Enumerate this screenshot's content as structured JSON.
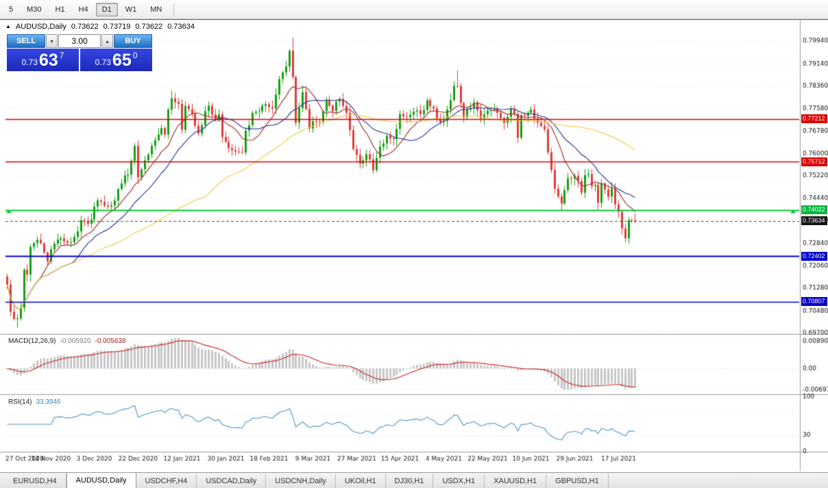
{
  "toolbar": {
    "timeframes": [
      {
        "label": "5",
        "active": false
      },
      {
        "label": "M30",
        "active": false
      },
      {
        "label": "H1",
        "active": false
      },
      {
        "label": "H4",
        "active": false
      },
      {
        "label": "D1",
        "active": true
      },
      {
        "label": "W1",
        "active": false
      },
      {
        "label": "MN",
        "active": false
      }
    ]
  },
  "chart": {
    "header": {
      "icon_glyph": "▲",
      "symbol": "AUDUSD,Daily",
      "open": "0.73622",
      "high": "0.73719",
      "low": "0.73622",
      "close": "0.73634"
    },
    "trade_panel": {
      "sell_label": "SELL",
      "buy_label": "BUY",
      "volume": "3.00",
      "dropdown_glyph": "▾",
      "increase_glyph": "▴",
      "sell_price": {
        "base": "0.73",
        "big": "63",
        "sup": "7"
      },
      "buy_price": {
        "base": "0.73",
        "big": "65",
        "sup": "0"
      }
    }
  },
  "indicators": {
    "macd": {
      "title": "MACD(12,26,9)",
      "value1": "-0.005920",
      "value2": "-0.005638"
    },
    "rsi": {
      "title": "RSI(14)",
      "value": "33.3946"
    }
  },
  "price_markers": [
    {
      "text": "0.77212",
      "price": 0.77212,
      "bg": "#dd0000"
    },
    {
      "text": "0.75712",
      "price": 0.75712,
      "bg": "#dd0000"
    },
    {
      "text": "0.74022",
      "price": 0.74022,
      "bg": "#00b83c"
    },
    {
      "text": "0.73634",
      "price": 0.73634,
      "bg": "#141414"
    },
    {
      "text": "0.72402",
      "price": 0.72402,
      "bg": "#0000cc"
    },
    {
      "text": "0.70807",
      "price": 0.70807,
      "bg": "#0000cc"
    }
  ],
  "tabs": {
    "items": [
      {
        "label": "EURUSD,H4",
        "active": false
      },
      {
        "label": "AUDUSD,Daily",
        "active": true
      },
      {
        "label": "USDCHF,H4",
        "active": false
      },
      {
        "label": "USDCAD,Daily",
        "active": false
      },
      {
        "label": "USDCNH,Daily",
        "active": false
      },
      {
        "label": "UKOil,H1",
        "active": false
      },
      {
        "label": "DJ30,H1",
        "active": false
      },
      {
        "label": "USDX,H1",
        "active": false
      },
      {
        "label": "XAUUSD,H1",
        "active": false
      },
      {
        "label": "GBPUSD,H1",
        "active": false
      }
    ]
  },
  "chart_data": {
    "type": "candlestick",
    "symbol": "AUDUSD",
    "timeframe": "Daily",
    "ohlc_display": {
      "open": 0.73622,
      "high": 0.73719,
      "low": 0.73622,
      "close": 0.73634
    },
    "last_price": 0.73634,
    "n_bars": 188,
    "bars_per_label": 13,
    "x_labels": [
      "27 Oct 2020",
      "14 Nov 2020",
      "3 Dec 2020",
      "22 Dec 2020",
      "12 Jan 2021",
      "30 Jan 2021",
      "18 Feb 2021",
      "9 Mar 2021",
      "27 Mar 2021",
      "15 Apr 2021",
      "4 May 2021",
      "22 May 2021",
      "10 Jun 2021",
      "29 Jun 2021",
      "17 Jul 2021"
    ],
    "y_ticks": [
      0.7994,
      0.7914,
      0.7836,
      0.7758,
      0.7678,
      0.76,
      0.7522,
      0.7444,
      0.7366,
      0.7284,
      0.7206,
      0.7128,
      0.7048,
      0.697
    ],
    "candle_up": "#12a112",
    "candle_down": "#e23b3b",
    "price_anchors": [
      [
        0,
        0.7135
      ],
      [
        1,
        0.704
      ],
      [
        2,
        0.702
      ],
      [
        3,
        0.703
      ],
      [
        4,
        0.7055
      ],
      [
        5,
        0.7185
      ],
      [
        6,
        0.717
      ],
      [
        7,
        0.7265
      ],
      [
        9,
        0.73
      ],
      [
        10,
        0.7285
      ],
      [
        12,
        0.723
      ],
      [
        13,
        0.7268
      ],
      [
        16,
        0.7305
      ],
      [
        18,
        0.7285
      ],
      [
        20,
        0.73
      ],
      [
        22,
        0.7365
      ],
      [
        24,
        0.7355
      ],
      [
        25,
        0.7375
      ],
      [
        27,
        0.744
      ],
      [
        29,
        0.742
      ],
      [
        31,
        0.7415
      ],
      [
        33,
        0.747
      ],
      [
        35,
        0.752
      ],
      [
        36,
        0.753
      ],
      [
        38,
        0.762
      ],
      [
        39,
        0.752
      ],
      [
        41,
        0.758
      ],
      [
        43,
        0.762
      ],
      [
        45,
        0.766
      ],
      [
        46,
        0.769
      ],
      [
        47,
        0.766
      ],
      [
        48,
        0.7755
      ],
      [
        49,
        0.78
      ],
      [
        51,
        0.777
      ],
      [
        52,
        0.769
      ],
      [
        53,
        0.777
      ],
      [
        55,
        0.774
      ],
      [
        56,
        0.77
      ],
      [
        57,
        0.7668
      ],
      [
        59,
        0.7743
      ],
      [
        60,
        0.7765
      ],
      [
        62,
        0.771
      ],
      [
        63,
        0.7744
      ],
      [
        64,
        0.7661
      ],
      [
        65,
        0.7637
      ],
      [
        67,
        0.7612
      ],
      [
        68,
        0.76
      ],
      [
        70,
        0.76
      ],
      [
        71,
        0.7676
      ],
      [
        73,
        0.7735
      ],
      [
        75,
        0.7751
      ],
      [
        77,
        0.7777
      ],
      [
        79,
        0.7752
      ],
      [
        81,
        0.786
      ],
      [
        83,
        0.791
      ],
      [
        84,
        0.7965
      ],
      [
        85,
        0.7875
      ],
      [
        86,
        0.771
      ],
      [
        88,
        0.781
      ],
      [
        90,
        0.769
      ],
      [
        91,
        0.7715
      ],
      [
        93,
        0.7715
      ],
      [
        95,
        0.7785
      ],
      [
        97,
        0.7755
      ],
      [
        99,
        0.7795
      ],
      [
        101,
        0.7745
      ],
      [
        103,
        0.762
      ],
      [
        105,
        0.7565
      ],
      [
        107,
        0.76
      ],
      [
        109,
        0.7545
      ],
      [
        111,
        0.762
      ],
      [
        113,
        0.766
      ],
      [
        115,
        0.7645
      ],
      [
        117,
        0.7735
      ],
      [
        119,
        0.772
      ],
      [
        121,
        0.7755
      ],
      [
        123,
        0.774
      ],
      [
        125,
        0.778
      ],
      [
        127,
        0.7755
      ],
      [
        128,
        0.7715
      ],
      [
        130,
        0.771
      ],
      [
        132,
        0.7785
      ],
      [
        133,
        0.784
      ],
      [
        134,
        0.783
      ],
      [
        136,
        0.773
      ],
      [
        139,
        0.7785
      ],
      [
        141,
        0.7725
      ],
      [
        143,
        0.7755
      ],
      [
        145,
        0.775
      ],
      [
        147,
        0.773
      ],
      [
        148,
        0.7715
      ],
      [
        150,
        0.7755
      ],
      [
        151,
        0.7745
      ],
      [
        152,
        0.766
      ],
      [
        153,
        0.7735
      ],
      [
        155,
        0.7745
      ],
      [
        156,
        0.775
      ],
      [
        158,
        0.7705
      ],
      [
        160,
        0.7685
      ],
      [
        161,
        0.761
      ],
      [
        162,
        0.7545
      ],
      [
        163,
        0.748
      ],
      [
        164,
        0.7445
      ],
      [
        165,
        0.743
      ],
      [
        166,
        0.7475
      ],
      [
        167,
        0.7515
      ],
      [
        169,
        0.7515
      ],
      [
        170,
        0.75
      ],
      [
        171,
        0.7465
      ],
      [
        172,
        0.7525
      ],
      [
        173,
        0.753
      ],
      [
        174,
        0.749
      ],
      [
        175,
        0.7487
      ],
      [
        176,
        0.7435
      ],
      [
        177,
        0.749
      ],
      [
        178,
        0.7478
      ],
      [
        179,
        0.7445
      ],
      [
        180,
        0.7485
      ],
      [
        181,
        0.7425
      ],
      [
        182,
        0.74
      ],
      [
        183,
        0.7337
      ],
      [
        184,
        0.7302
      ],
      [
        185,
        0.7359
      ],
      [
        186,
        0.737
      ],
      [
        187,
        0.73634
      ]
    ],
    "high_overrides": {
      "49": 0.782,
      "85": 0.8007,
      "134": 0.7891
    },
    "low_overrides": {
      "3": 0.6991,
      "165": 0.7402,
      "184": 0.7289
    },
    "hlines": [
      {
        "price": 0.77212,
        "color": "#dd0000",
        "width": 1.4,
        "markers": false
      },
      {
        "price": 0.75712,
        "color": "#dd0000",
        "width": 1.4,
        "markers": false
      },
      {
        "price": 0.74022,
        "color": "#00c832",
        "width": 2,
        "markers": true
      },
      {
        "price": 0.72402,
        "color": "#0000cc",
        "width": 2,
        "markers": false
      },
      {
        "price": 0.70807,
        "color": "#0000cc",
        "width": 1.4,
        "markers": false
      }
    ],
    "current_price_line": {
      "price": 0.73634,
      "color": "#555555",
      "style": "dash"
    },
    "moving_averages": [
      {
        "period": 10,
        "color": "#aa3333"
      },
      {
        "period": 20,
        "color": "#2b3f96"
      },
      {
        "period": 60,
        "color": "#f0d050"
      }
    ],
    "macd": {
      "params": [
        12,
        26,
        9
      ],
      "display_values": [
        -0.00592,
        -0.005638
      ],
      "range": [
        -0.0085,
        0.0105
      ],
      "y_ticks": [
        {
          "v": 0.0089,
          "label": "0.00890"
        },
        {
          "v": 0,
          "label": "0.00"
        },
        {
          "v": -0.00697,
          "label": "-0.00697"
        }
      ],
      "hist_color": "#c6c6c6",
      "signal_color": "#cc2222"
    },
    "rsi": {
      "period": 14,
      "display_value": 33.3946,
      "y_ticks": [
        {
          "v": 100,
          "label": "100"
        },
        {
          "v": 30,
          "label": "30"
        },
        {
          "v": 0,
          "label": "0"
        }
      ],
      "levels": [
        30,
        70
      ],
      "color": "#4a96c8"
    }
  }
}
